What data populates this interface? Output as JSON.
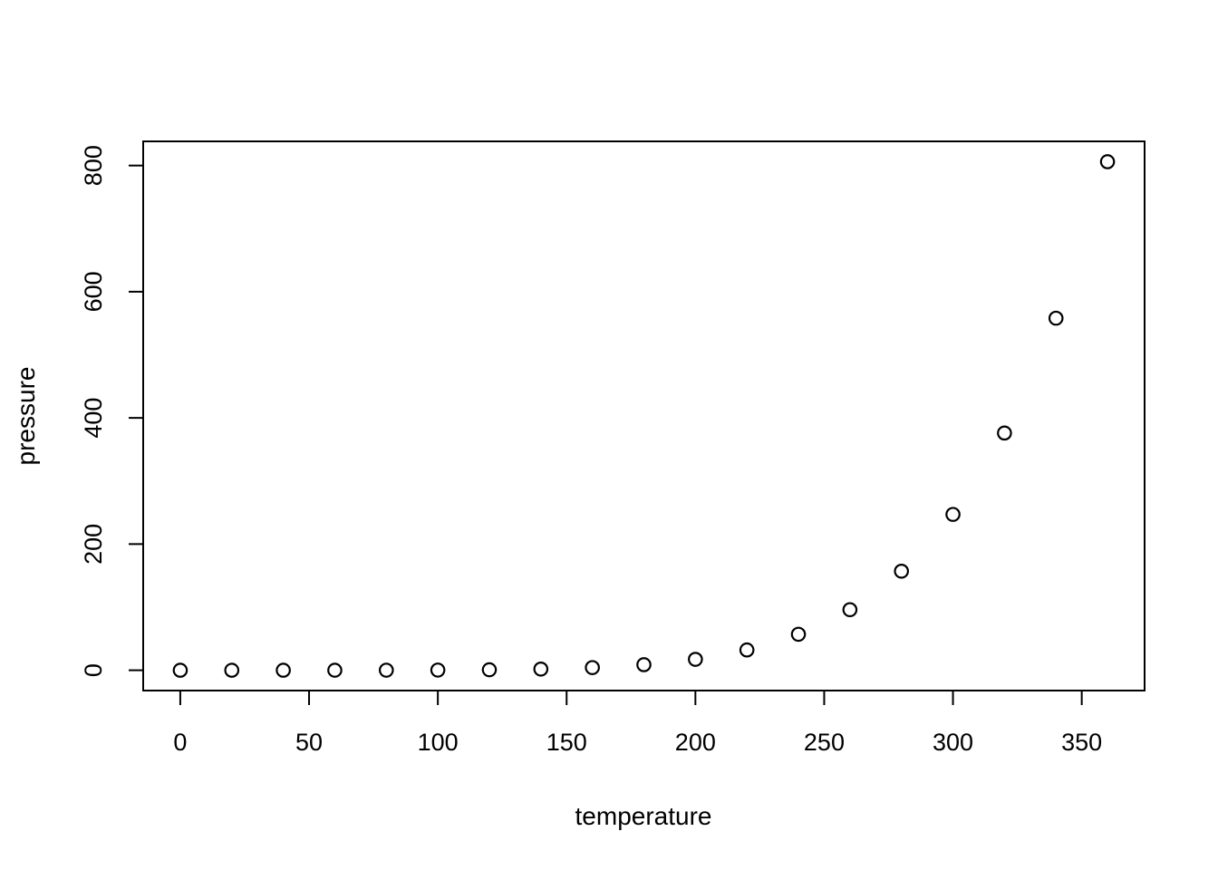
{
  "chart_data": {
    "type": "scatter",
    "title": "",
    "xlabel": "temperature",
    "ylabel": "pressure",
    "x": [
      0,
      20,
      40,
      60,
      80,
      100,
      120,
      140,
      160,
      180,
      200,
      220,
      240,
      260,
      280,
      300,
      320,
      340,
      360
    ],
    "y": [
      0.0002,
      0.0012,
      0.006,
      0.03,
      0.09,
      0.27,
      0.75,
      1.85,
      4.2,
      8.8,
      17.3,
      32.1,
      57.0,
      96.0,
      157.0,
      247.0,
      376.0,
      558.0,
      806.0
    ],
    "x_ticks": [
      0,
      50,
      100,
      150,
      200,
      250,
      300,
      350
    ],
    "y_ticks": [
      0,
      200,
      400,
      600,
      800
    ],
    "x_range": [
      -14.4,
      374.4
    ],
    "y_range": [
      -32.2,
      838.3
    ],
    "grid": false,
    "legend": "none",
    "marker": "open-circle",
    "marker_color": "#000000",
    "axis_color": "#000000",
    "background_color": "#ffffff"
  }
}
